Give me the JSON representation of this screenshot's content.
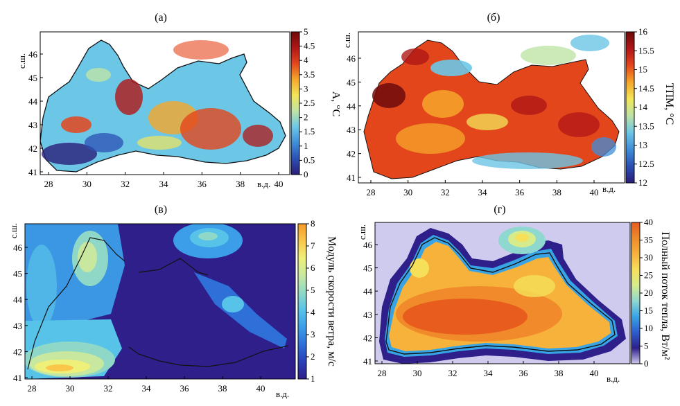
{
  "colors": {
    "panel_a": [
      "#2a1e78",
      "#2b4fb3",
      "#3f8ed8",
      "#6cc6e6",
      "#bfe3a6",
      "#f2e65a",
      "#f6a72a",
      "#e4461c",
      "#b01616",
      "#6e0a0a"
    ],
    "panel_b": [
      "#2a1e78",
      "#2b4fb3",
      "#3f8ed8",
      "#6cc6e6",
      "#bfe3a6",
      "#f2e65a",
      "#f6a72a",
      "#e4461c",
      "#b01616",
      "#6e0a0a"
    ],
    "panel_v": [
      "#2e1f8a",
      "#2a3fb8",
      "#2f6fd8",
      "#3c9ee8",
      "#58c3e8",
      "#8fd8c8",
      "#c8e8a0",
      "#eef07a",
      "#f9c84a",
      "#f59a2a"
    ],
    "panel_g": [
      "#cfcbee",
      "#2e1f8a",
      "#2d5dd0",
      "#38a4e6",
      "#8fd8d0",
      "#d6ec8c",
      "#f6e05a",
      "#f6b23a",
      "#f08a2a",
      "#e85c1e"
    ]
  },
  "panels": [
    {
      "id": "a",
      "title": "(а)",
      "colorbar_label": "A, °C",
      "colorbar_ticks": [
        "0",
        "0.5",
        "1",
        "1.5",
        "2",
        "2.5",
        "3",
        "3.5",
        "4",
        "4.5",
        "5"
      ],
      "x_ticks": [
        "28",
        "30",
        "32",
        "34",
        "36",
        "38",
        "40"
      ],
      "x_unit": "в.д.",
      "y_ticks": [
        "41",
        "42",
        "43",
        "44",
        "45",
        "46"
      ],
      "y_unit": "с.ш."
    },
    {
      "id": "b",
      "title": "(б)",
      "colorbar_label": "ТПМ, °C",
      "colorbar_ticks": [
        "12",
        "12.5",
        "13",
        "13.5",
        "14",
        "14.5",
        "15",
        "15.5",
        "16"
      ],
      "x_ticks": [
        "28",
        "30",
        "32",
        "34",
        "36",
        "38",
        "40"
      ],
      "x_unit": "в.д.",
      "y_ticks": [
        "41",
        "42",
        "43",
        "44",
        "45",
        "46"
      ],
      "y_unit": "с.ш."
    },
    {
      "id": "v",
      "title": "(в)",
      "colorbar_label": "Модуль скорости ветра, м/с",
      "colorbar_ticks": [
        "1",
        "2",
        "3",
        "4",
        "5",
        "6",
        "7",
        "8"
      ],
      "x_ticks": [
        "28",
        "30",
        "32",
        "34",
        "36",
        "38",
        "40"
      ],
      "x_unit": "в.д.",
      "y_ticks": [
        "41",
        "42",
        "43",
        "44",
        "45",
        "46"
      ],
      "y_unit": "с.ш."
    },
    {
      "id": "g",
      "title": "(г)",
      "colorbar_label": "Полный поток тепла, Вт/м²",
      "colorbar_ticks": [
        "0",
        "5",
        "10",
        "15",
        "20",
        "25",
        "30",
        "35",
        "40"
      ],
      "x_ticks": [
        "28",
        "30",
        "32",
        "34",
        "36",
        "38",
        "40"
      ],
      "x_unit": "в.д.",
      "y_ticks": [
        "41",
        "42",
        "43",
        "44",
        "45",
        "46"
      ],
      "y_unit": "с.ш."
    }
  ]
}
